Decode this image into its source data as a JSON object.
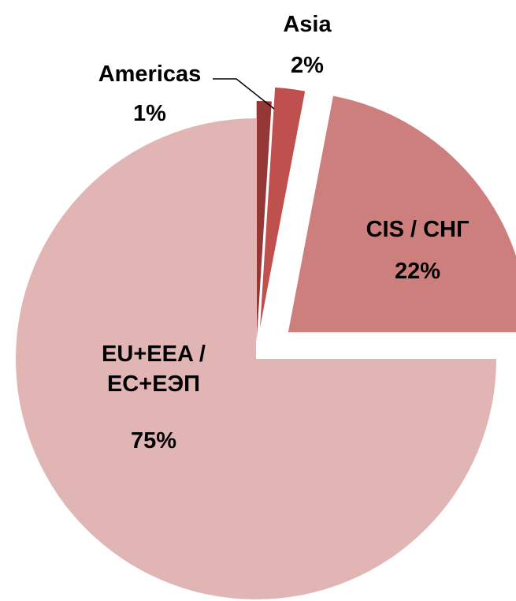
{
  "chart_data": {
    "type": "pie",
    "categories": [
      "Americas",
      "Asia",
      "CIS / СНГ",
      "EU+EEA / ЕС+ЕЭП"
    ],
    "values": [
      1,
      2,
      22,
      75
    ],
    "value_labels": [
      "1%",
      "2%",
      "22%",
      "75%"
    ],
    "colors": [
      "#953735",
      "#c0504d",
      "#cd7f7d",
      "#e0b5b4"
    ]
  }
}
